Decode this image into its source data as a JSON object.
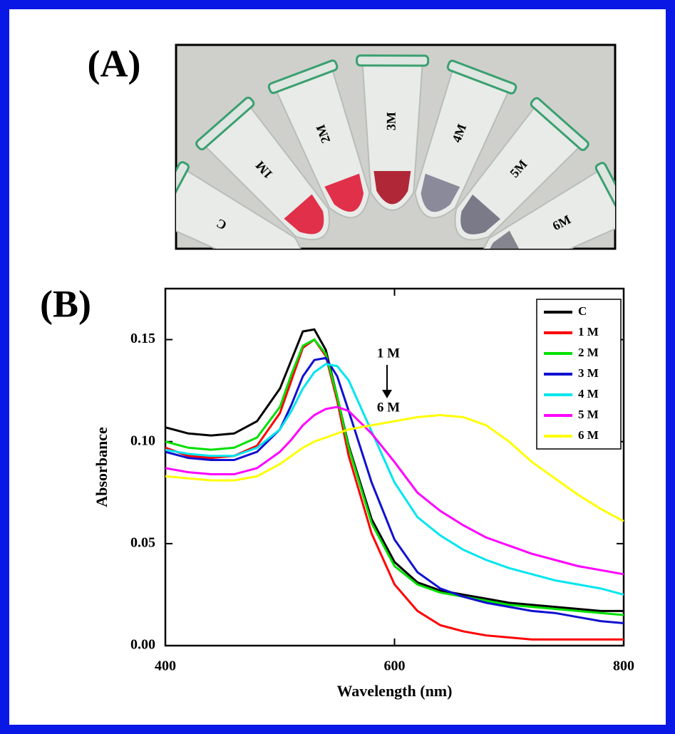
{
  "panel_a": {
    "label": "(A)",
    "tube_labels": [
      "C",
      "1M",
      "2M",
      "3M",
      "4M",
      "5M",
      "6M"
    ]
  },
  "chart_data": {
    "type": "line",
    "panel_label": "(B)",
    "x_label": "Wavelength (nm)",
    "y_label": "Absorbance",
    "annotation_top": "1 M",
    "annotation_bottom": "6 M",
    "xlim": [
      400,
      800
    ],
    "ylim": [
      0,
      0.175
    ],
    "xticks": [
      400,
      600,
      800
    ],
    "yticks": [
      {
        "value": 0,
        "label": "0.00"
      },
      {
        "value": 0.05,
        "label": "0.05"
      },
      {
        "value": 0.1,
        "label": "0.10"
      },
      {
        "value": 0.15,
        "label": "0.15"
      }
    ],
    "legend": "top-right",
    "x": [
      400,
      420,
      440,
      460,
      480,
      500,
      510,
      520,
      530,
      540,
      550,
      560,
      580,
      600,
      620,
      640,
      660,
      680,
      700,
      720,
      740,
      760,
      780,
      800
    ],
    "series": [
      {
        "name": "C",
        "color": "#000000",
        "values": [
          0.107,
          0.104,
          0.103,
          0.104,
          0.11,
          0.126,
          0.14,
          0.154,
          0.155,
          0.145,
          0.122,
          0.098,
          0.062,
          0.041,
          0.031,
          0.027,
          0.025,
          0.023,
          0.021,
          0.02,
          0.019,
          0.018,
          0.017,
          0.017
        ]
      },
      {
        "name": "1 M",
        "color": "#ff0000",
        "values": [
          0.097,
          0.093,
          0.092,
          0.093,
          0.098,
          0.114,
          0.13,
          0.146,
          0.15,
          0.142,
          0.12,
          0.093,
          0.055,
          0.03,
          0.017,
          0.01,
          0.007,
          0.005,
          0.004,
          0.003,
          0.003,
          0.003,
          0.003,
          0.003
        ]
      },
      {
        "name": "2 M",
        "color": "#00e000",
        "values": [
          0.1,
          0.097,
          0.096,
          0.097,
          0.102,
          0.117,
          0.133,
          0.147,
          0.15,
          0.143,
          0.122,
          0.097,
          0.06,
          0.039,
          0.03,
          0.026,
          0.024,
          0.022,
          0.02,
          0.019,
          0.018,
          0.017,
          0.016,
          0.015
        ]
      },
      {
        "name": "3 M",
        "color": "#1010d0",
        "values": [
          0.095,
          0.092,
          0.091,
          0.091,
          0.095,
          0.106,
          0.118,
          0.132,
          0.14,
          0.141,
          0.132,
          0.115,
          0.08,
          0.052,
          0.036,
          0.028,
          0.024,
          0.021,
          0.019,
          0.017,
          0.016,
          0.014,
          0.012,
          0.011
        ]
      },
      {
        "name": "4 M",
        "color": "#00e5ee",
        "values": [
          0.096,
          0.094,
          0.093,
          0.093,
          0.097,
          0.106,
          0.115,
          0.126,
          0.134,
          0.138,
          0.137,
          0.13,
          0.105,
          0.08,
          0.063,
          0.054,
          0.047,
          0.042,
          0.038,
          0.035,
          0.032,
          0.03,
          0.028,
          0.025
        ]
      },
      {
        "name": "5 M",
        "color": "#ff00ff",
        "values": [
          0.087,
          0.085,
          0.084,
          0.084,
          0.087,
          0.095,
          0.101,
          0.108,
          0.113,
          0.116,
          0.117,
          0.115,
          0.104,
          0.09,
          0.075,
          0.066,
          0.059,
          0.053,
          0.049,
          0.045,
          0.042,
          0.039,
          0.037,
          0.035
        ]
      },
      {
        "name": "6 M",
        "color": "#ffff00",
        "values": [
          0.083,
          0.082,
          0.081,
          0.081,
          0.083,
          0.089,
          0.093,
          0.097,
          0.1,
          0.102,
          0.104,
          0.106,
          0.108,
          0.11,
          0.112,
          0.113,
          0.112,
          0.108,
          0.1,
          0.09,
          0.082,
          0.074,
          0.067,
          0.061
        ]
      }
    ]
  }
}
